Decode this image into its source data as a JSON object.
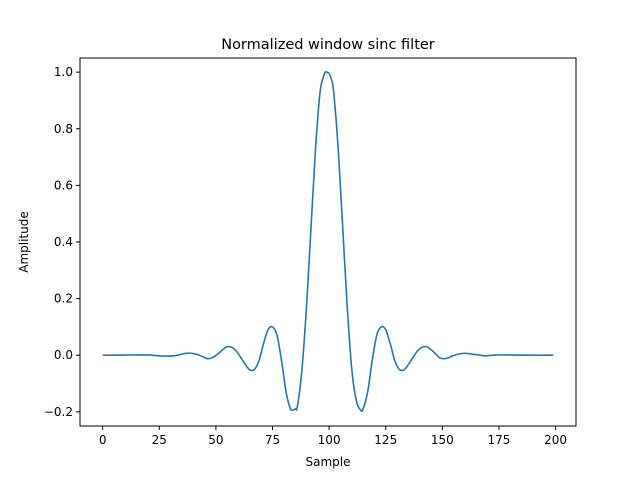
{
  "chart_data": {
    "type": "line",
    "title": "Normalized window sinc filter",
    "xlabel": "Sample",
    "ylabel": "Amplitude",
    "xlim": [
      -10,
      209
    ],
    "ylim": [
      -0.25,
      1.05
    ],
    "xticks": [
      0,
      25,
      50,
      75,
      100,
      125,
      150,
      175,
      200
    ],
    "xtick_labels": [
      "0",
      "25",
      "50",
      "75",
      "100",
      "125",
      "150",
      "175",
      "200"
    ],
    "yticks": [
      -0.2,
      0.0,
      0.2,
      0.4,
      0.6,
      0.8,
      1.0
    ],
    "ytick_labels": [
      "−0.2",
      "0.0",
      "0.2",
      "0.4",
      "0.6",
      "0.8",
      "1.0"
    ],
    "grid": false,
    "series": [
      {
        "color": "#1f77b4",
        "x": [
          0,
          5,
          10,
          15,
          20,
          25,
          30,
          33,
          36,
          39,
          42,
          45,
          46,
          48,
          51,
          53,
          55,
          57,
          59,
          61,
          63,
          65,
          67,
          69,
          71,
          73,
          75,
          77,
          79,
          81,
          83,
          85,
          86,
          88,
          90,
          92,
          94,
          96,
          98,
          99,
          100,
          101,
          102,
          104,
          106,
          108,
          110,
          112,
          114,
          115,
          117,
          119,
          121,
          123,
          125,
          127,
          129,
          131,
          133,
          135,
          137,
          139,
          141,
          143,
          145,
          147,
          149,
          151,
          153,
          154,
          157,
          160,
          163,
          166,
          169,
          174,
          180,
          185,
          190,
          195,
          199
        ],
        "y": [
          0.0,
          0.0,
          0.0005,
          0.001,
          0.001,
          -0.002,
          -0.003,
          0.0,
          0.006,
          0.007,
          0.002,
          -0.008,
          -0.012,
          -0.01,
          0.005,
          0.02,
          0.03,
          0.028,
          0.015,
          -0.008,
          -0.033,
          -0.052,
          -0.05,
          -0.02,
          0.04,
          0.09,
          0.1,
          0.07,
          -0.02,
          -0.13,
          -0.19,
          -0.19,
          -0.18,
          -0.05,
          0.17,
          0.45,
          0.73,
          0.93,
          0.995,
          1.0,
          0.995,
          0.975,
          0.93,
          0.73,
          0.45,
          0.17,
          -0.05,
          -0.16,
          -0.195,
          -0.19,
          -0.13,
          -0.02,
          0.07,
          0.1,
          0.09,
          0.04,
          -0.02,
          -0.05,
          -0.052,
          -0.033,
          -0.008,
          0.015,
          0.028,
          0.03,
          0.02,
          0.005,
          -0.01,
          -0.012,
          -0.008,
          -0.004,
          0.004,
          0.007,
          0.004,
          0.001,
          -0.002,
          0.001,
          0.001,
          0.0005,
          0.0,
          0.0,
          0.0
        ]
      }
    ]
  }
}
